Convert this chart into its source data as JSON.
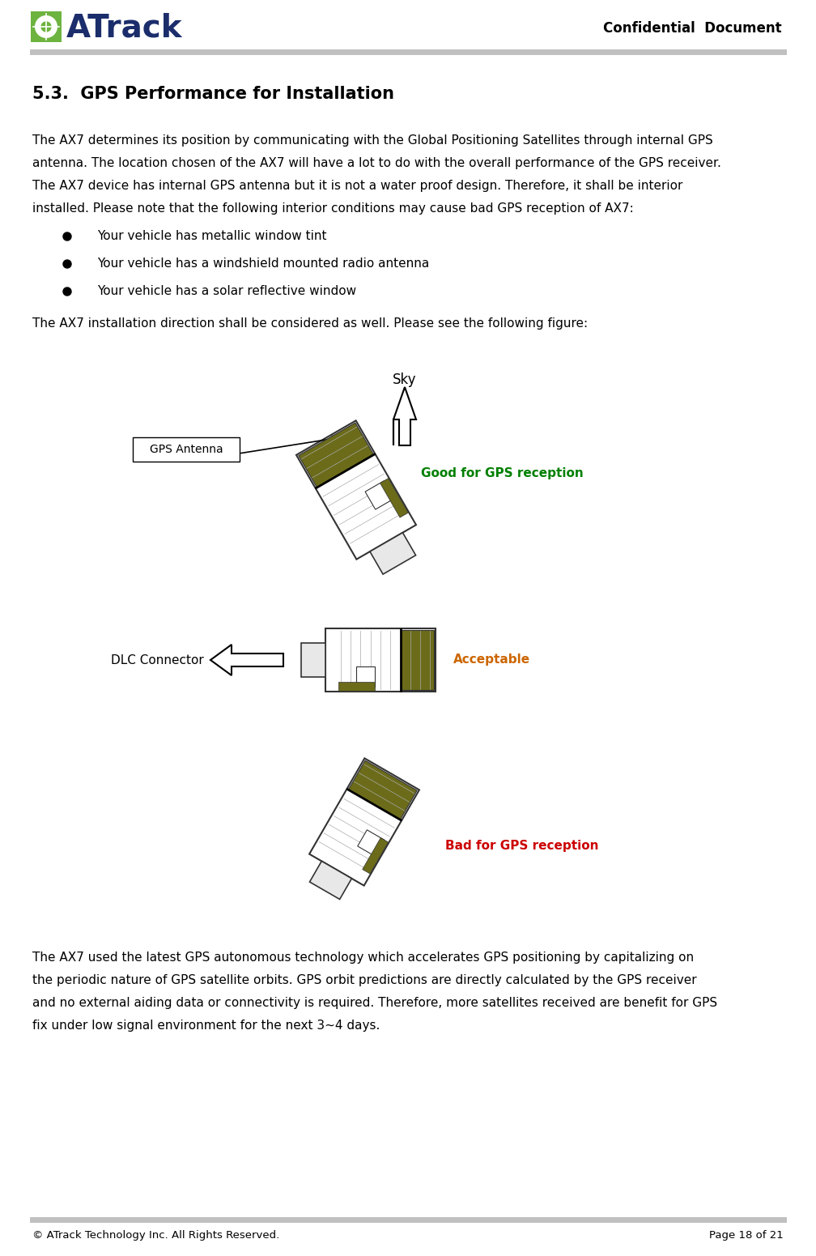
{
  "page_width": 10.08,
  "page_height": 15.51,
  "dpi": 100,
  "bg_color": "#ffffff",
  "header_line_color": "#c0c0c0",
  "footer_line_color": "#c0c0c0",
  "logo_green": "#6db33f",
  "logo_blue": "#1b2d6b",
  "header_right": "Confidential  Document",
  "footer_left": "© ATrack Technology Inc. All Rights Reserved.",
  "footer_right": "Page 18 of 21",
  "section_title": "5.3.  GPS Performance for Installation",
  "body_text1": "The AX7 determines its position by communicating with the Global Positioning Satellites through internal GPS antenna. The location chosen of the AX7 will have a lot to do with the overall performance of the GPS receiver. The AX7 device has internal GPS antenna but it is not a water proof design. Therefore, it shall be interior installed. Please note that the following interior conditions may cause bad GPS reception of AX7:",
  "bullets": [
    "Your vehicle has metallic window tint",
    "Your vehicle has a windshield mounted radio antenna",
    "Your vehicle has a solar reflective window"
  ],
  "body_text2": "The AX7 installation direction shall be considered as well. Please see the following figure:",
  "body_text3": "The AX7 used the latest GPS autonomous technology which accelerates GPS positioning by capitalizing on the periodic nature of GPS satellite orbits. GPS orbit predictions are directly calculated by the GPS receiver and no external aiding data or connectivity is required. Therefore, more satellites received are benefit for GPS fix under low signal environment for the next 3~4 days.",
  "label_gps_antenna": "GPS Antenna",
  "label_dlc": "DLC Connector",
  "label_sky": "Sky",
  "label_good": "Good for GPS reception",
  "label_acceptable": "Acceptable",
  "label_bad": "Bad for GPS reception",
  "good_color": "#008000",
  "acceptable_color": "#cc6600",
  "bad_color": "#cc0000",
  "device_olive": "#6b6b1a",
  "device_dark": "#4a4a0a",
  "device_body": "#ffffff",
  "device_border": "#333333",
  "device_connector_fill": "#f0f0f0"
}
